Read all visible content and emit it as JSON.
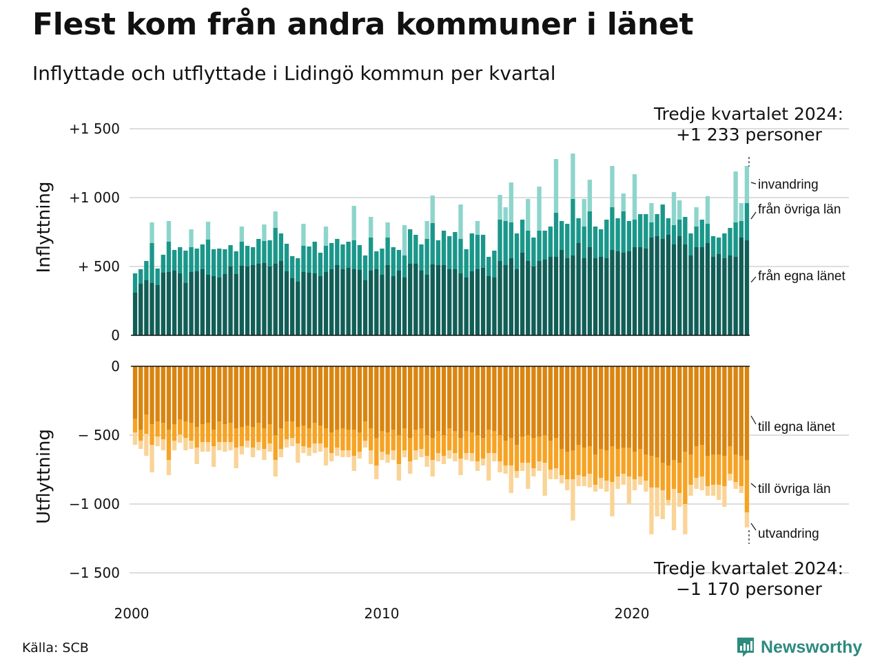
{
  "title": "Flest kom från andra kommuner i länet",
  "subtitle": "Inflyttade och utflyttade i Lidingö kommun per kvartal",
  "source": "Källa: SCB",
  "brand": "Newsworthy",
  "annotations": {
    "top_line1": "Tredje kvartalet 2024:",
    "top_line2": "+1 233 personer",
    "bottom_line1": "Tredje kvartalet 2024:",
    "bottom_line2": "−1 170 personer"
  },
  "colors": {
    "in_own_county": "#115e57",
    "in_other_counties": "#1a978a",
    "in_immigration": "#8dd5cc",
    "out_own_county": "#d98510",
    "out_other_counties": "#f6a324",
    "out_emigration": "#fad497",
    "grid": "#dddddd",
    "brand": "#2d8b7e"
  },
  "chart_data": [
    {
      "type": "bar",
      "stacked": true,
      "panel": "top",
      "ylabel": "Inflyttning",
      "ylim": [
        0,
        1600
      ],
      "yticks": [
        0,
        500,
        1000,
        1500
      ],
      "ytick_labels": [
        "0",
        "+  500",
        "+1 000",
        "+1 500"
      ],
      "x_start": "2000 Q1",
      "x_ticks": [
        "2000",
        "2010",
        "2020"
      ],
      "series": [
        {
          "name": "från egna länet",
          "values": [
            310,
            375,
            400,
            380,
            365,
            455,
            460,
            470,
            450,
            380,
            460,
            465,
            480,
            440,
            430,
            420,
            445,
            500,
            445,
            505,
            500,
            510,
            520,
            525,
            500,
            520,
            540,
            465,
            415,
            390,
            460,
            455,
            450,
            430,
            460,
            480,
            510,
            480,
            490,
            480,
            475,
            400,
            470,
            480,
            440,
            510,
            430,
            470,
            420,
            520,
            520,
            470,
            440,
            515,
            510,
            510,
            480,
            480,
            450,
            420,
            465,
            480,
            490,
            430,
            420,
            540,
            510,
            560,
            480,
            600,
            540,
            500,
            540,
            550,
            570,
            570,
            620,
            560,
            580,
            670,
            560,
            640,
            560,
            570,
            560,
            620,
            610,
            600,
            610,
            640,
            640,
            630,
            710,
            720,
            700,
            730,
            660,
            720,
            660,
            580,
            640,
            640,
            670,
            570,
            590,
            560,
            580,
            570,
            710,
            690
          ]
        },
        {
          "name": "från övriga län",
          "values": [
            140,
            105,
            140,
            290,
            120,
            130,
            220,
            150,
            190,
            235,
            180,
            165,
            180,
            255,
            195,
            210,
            180,
            155,
            165,
            175,
            150,
            130,
            180,
            160,
            190,
            260,
            200,
            200,
            160,
            170,
            190,
            190,
            230,
            170,
            190,
            190,
            190,
            180,
            190,
            210,
            180,
            180,
            240,
            130,
            190,
            200,
            210,
            150,
            160,
            250,
            210,
            190,
            260,
            300,
            180,
            250,
            240,
            270,
            250,
            205,
            275,
            250,
            240,
            140,
            195,
            300,
            320,
            260,
            260,
            240,
            220,
            210,
            220,
            210,
            220,
            320,
            210,
            250,
            410,
            180,
            230,
            260,
            230,
            200,
            280,
            310,
            240,
            300,
            220,
            200,
            240,
            250,
            110,
            160,
            250,
            120,
            140,
            120,
            200,
            160,
            150,
            200,
            140,
            150,
            120,
            180,
            200,
            250,
            120,
            270
          ]
        },
        {
          "name": "invandring",
          "values": [
            0,
            0,
            0,
            150,
            0,
            0,
            150,
            0,
            0,
            0,
            130,
            0,
            0,
            130,
            0,
            0,
            0,
            0,
            0,
            110,
            0,
            0,
            0,
            120,
            0,
            120,
            0,
            0,
            0,
            0,
            160,
            0,
            0,
            0,
            140,
            0,
            0,
            0,
            0,
            250,
            0,
            0,
            150,
            0,
            0,
            110,
            0,
            0,
            220,
            0,
            0,
            0,
            130,
            200,
            0,
            0,
            0,
            0,
            250,
            0,
            0,
            100,
            0,
            0,
            0,
            180,
            100,
            290,
            0,
            0,
            230,
            0,
            320,
            0,
            0,
            390,
            0,
            0,
            330,
            0,
            200,
            230,
            0,
            0,
            0,
            300,
            0,
            130,
            0,
            330,
            0,
            0,
            140,
            0,
            0,
            0,
            240,
            140,
            0,
            0,
            140,
            0,
            200,
            0,
            0,
            0,
            0,
            370,
            130,
            270
          ]
        }
      ]
    },
    {
      "type": "bar",
      "stacked": true,
      "panel": "bottom",
      "ylabel": "Utflyttning",
      "ylim": [
        -1600,
        0
      ],
      "yticks": [
        0,
        -500,
        -1000,
        -1500
      ],
      "ytick_labels": [
        "0",
        "−  500",
        "−1 000",
        "−1 500"
      ],
      "x_start": "2000 Q1",
      "x_ticks": [
        "2000",
        "2010",
        "2020"
      ],
      "series": [
        {
          "name": "till egna länet",
          "values": [
            -380,
            -460,
            -350,
            -420,
            -400,
            -410,
            -460,
            -420,
            -385,
            -400,
            -410,
            -440,
            -420,
            -410,
            -460,
            -400,
            -420,
            -410,
            -450,
            -440,
            -430,
            -440,
            -410,
            -450,
            -420,
            -500,
            -450,
            -400,
            -400,
            -440,
            -430,
            -450,
            -410,
            -430,
            -450,
            -480,
            -460,
            -450,
            -460,
            -460,
            -480,
            -400,
            -450,
            -520,
            -470,
            -480,
            -460,
            -500,
            -450,
            -520,
            -460,
            -450,
            -500,
            -520,
            -470,
            -500,
            -450,
            -470,
            -520,
            -470,
            -480,
            -500,
            -520,
            -460,
            -470,
            -500,
            -540,
            -520,
            -570,
            -510,
            -500,
            -520,
            -510,
            -500,
            -540,
            -520,
            -600,
            -620,
            -610,
            -570,
            -590,
            -580,
            -640,
            -600,
            -610,
            -580,
            -600,
            -590,
            -590,
            -620,
            -600,
            -640,
            -650,
            -660,
            -700,
            -720,
            -680,
            -700,
            -620,
            -640,
            -580,
            -570,
            -650,
            -640,
            -640,
            -650,
            -580,
            -640,
            -650,
            -680
          ]
        },
        {
          "name": "till övriga län",
          "values": [
            -100,
            -80,
            -140,
            -150,
            -110,
            -120,
            -220,
            -120,
            -110,
            -120,
            -130,
            -150,
            -130,
            -140,
            -120,
            -150,
            -130,
            -140,
            -140,
            -140,
            -110,
            -150,
            -140,
            -150,
            -140,
            -180,
            -150,
            -130,
            -120,
            -120,
            -150,
            -140,
            -150,
            -130,
            -140,
            -150,
            -130,
            -160,
            -150,
            -190,
            -140,
            -140,
            -160,
            -200,
            -150,
            -160,
            -150,
            -210,
            -160,
            -170,
            -150,
            -150,
            -150,
            -160,
            -160,
            -150,
            -160,
            -160,
            -150,
            -160,
            -150,
            -190,
            -150,
            -170,
            -160,
            -190,
            -180,
            -200,
            -190,
            -190,
            -200,
            -220,
            -180,
            -200,
            -210,
            -220,
            -190,
            -200,
            -210,
            -220,
            -210,
            -200,
            -220,
            -210,
            -220,
            -260,
            -200,
            -190,
            -210,
            -200,
            -200,
            -190,
            -230,
            -220,
            -200,
            -250,
            -210,
            -220,
            -380,
            -220,
            -230,
            -230,
            -220,
            -220,
            -220,
            -220,
            -200,
            -200,
            -220,
            -380
          ]
        },
        {
          "name": "utvandring",
          "values": [
            -90,
            -60,
            -160,
            -200,
            -70,
            -80,
            -110,
            -70,
            -60,
            -90,
            -60,
            -120,
            -70,
            -70,
            -150,
            -60,
            -70,
            -60,
            -150,
            -60,
            -50,
            -70,
            -60,
            -80,
            -60,
            -120,
            -60,
            -60,
            -60,
            -140,
            -50,
            -60,
            -70,
            -60,
            -130,
            -60,
            -60,
            -50,
            -50,
            -110,
            -50,
            -50,
            -100,
            -100,
            -60,
            -60,
            -70,
            -120,
            -50,
            -90,
            -70,
            -60,
            -80,
            -120,
            -60,
            -60,
            -60,
            -60,
            -120,
            -50,
            -60,
            -70,
            -50,
            -200,
            -60,
            -80,
            -60,
            -200,
            -50,
            -60,
            -190,
            -60,
            -70,
            -240,
            -70,
            -80,
            -60,
            -80,
            -300,
            -80,
            -70,
            -100,
            -50,
            -80,
            -80,
            -250,
            -90,
            -80,
            -200,
            -80,
            -60,
            -80,
            -340,
            -210,
            -210,
            -40,
            -300,
            -100,
            -220,
            -80,
            -80,
            -100,
            -70,
            -80,
            -110,
            -150,
            -50,
            -50,
            -50,
            -110
          ]
        }
      ]
    }
  ]
}
